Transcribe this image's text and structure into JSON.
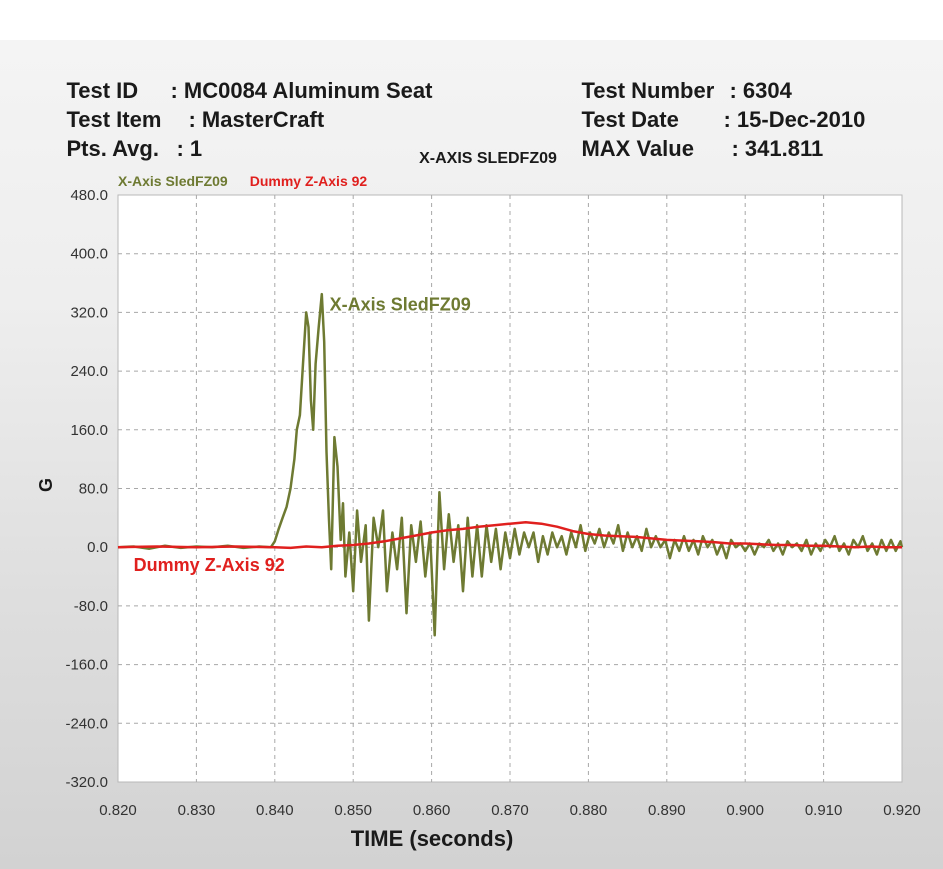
{
  "header": {
    "test_id_label": "Test ID",
    "test_id_value": ": MC0084 Aluminum Seat",
    "test_item_label": "Test Item",
    "test_item_value": ": MasterCraft",
    "pts_avg_label": "Pts. Avg.",
    "pts_avg_value": ": 1",
    "test_number_label": "Test Number",
    "test_number_value": ": 6304",
    "test_date_label": "Test Date",
    "test_date_value": ": 15-Dec-2010",
    "max_value_label": "MAX Value",
    "max_value_value": ": 341.811"
  },
  "chart_data": {
    "type": "line",
    "title": "X-AXIS SLEDFZ09",
    "xlabel": "TIME (seconds)",
    "ylabel": "G",
    "xlim": [
      0.82,
      0.92
    ],
    "ylim": [
      -320,
      480
    ],
    "x_ticks": [
      "0.820",
      "0.830",
      "0.840",
      "0.850",
      "0.860",
      "0.870",
      "0.880",
      "0.890",
      "0.900",
      "0.910",
      "0.920"
    ],
    "y_ticks": [
      "480.0",
      "400.0",
      "320.0",
      "240.0",
      "160.0",
      "80.0",
      "0.0",
      "-80.0",
      "-160.0",
      "-240.0",
      "-320.0"
    ],
    "grid": true,
    "legend_position": "top-left",
    "legend": [
      "X-Axis SledFZ09",
      "Dummy Z-Axis 92"
    ],
    "annotations": [
      {
        "text": "X-Axis SledFZ09",
        "x": 0.847,
        "y": 320,
        "color": "#6e7a32"
      },
      {
        "text": "Dummy Z-Axis 92",
        "x": 0.822,
        "y": -35,
        "color": "#e0201e"
      }
    ],
    "series": [
      {
        "name": "X-Axis SledFZ09",
        "color": "#6e7a32",
        "points": [
          [
            0.82,
            0
          ],
          [
            0.822,
            1
          ],
          [
            0.824,
            -2
          ],
          [
            0.826,
            2
          ],
          [
            0.828,
            -1
          ],
          [
            0.83,
            1
          ],
          [
            0.832,
            0
          ],
          [
            0.834,
            2
          ],
          [
            0.836,
            -1
          ],
          [
            0.838,
            1
          ],
          [
            0.8395,
            0
          ],
          [
            0.84,
            8
          ],
          [
            0.8405,
            25
          ],
          [
            0.841,
            40
          ],
          [
            0.8415,
            55
          ],
          [
            0.842,
            80
          ],
          [
            0.8425,
            120
          ],
          [
            0.8428,
            160
          ],
          [
            0.8432,
            180
          ],
          [
            0.8436,
            250
          ],
          [
            0.844,
            320
          ],
          [
            0.8443,
            300
          ],
          [
            0.8446,
            200
          ],
          [
            0.8449,
            160
          ],
          [
            0.8452,
            250
          ],
          [
            0.8456,
            300
          ],
          [
            0.846,
            345
          ],
          [
            0.8463,
            280
          ],
          [
            0.8466,
            130
          ],
          [
            0.8469,
            40
          ],
          [
            0.8472,
            -30
          ],
          [
            0.8476,
            150
          ],
          [
            0.848,
            110
          ],
          [
            0.8484,
            10
          ],
          [
            0.8487,
            60
          ],
          [
            0.849,
            -40
          ],
          [
            0.8495,
            20
          ],
          [
            0.85,
            -60
          ],
          [
            0.8505,
            50
          ],
          [
            0.851,
            -20
          ],
          [
            0.8516,
            30
          ],
          [
            0.852,
            -100
          ],
          [
            0.8526,
            40
          ],
          [
            0.8532,
            0
          ],
          [
            0.8538,
            50
          ],
          [
            0.8543,
            -60
          ],
          [
            0.855,
            20
          ],
          [
            0.8556,
            -30
          ],
          [
            0.8562,
            40
          ],
          [
            0.8568,
            -90
          ],
          [
            0.8574,
            30
          ],
          [
            0.858,
            -20
          ],
          [
            0.8586,
            35
          ],
          [
            0.8592,
            -40
          ],
          [
            0.8598,
            20
          ],
          [
            0.8604,
            -120
          ],
          [
            0.861,
            75
          ],
          [
            0.8616,
            -30
          ],
          [
            0.8622,
            45
          ],
          [
            0.8628,
            -20
          ],
          [
            0.8634,
            30
          ],
          [
            0.864,
            -60
          ],
          [
            0.8646,
            40
          ],
          [
            0.8652,
            -40
          ],
          [
            0.8658,
            30
          ],
          [
            0.8664,
            -40
          ],
          [
            0.867,
            30
          ],
          [
            0.8676,
            -20
          ],
          [
            0.8682,
            25
          ],
          [
            0.8688,
            -30
          ],
          [
            0.8694,
            20
          ],
          [
            0.87,
            -15
          ],
          [
            0.8706,
            25
          ],
          [
            0.8712,
            -10
          ],
          [
            0.8718,
            20
          ],
          [
            0.8724,
            0
          ],
          [
            0.873,
            20
          ],
          [
            0.8736,
            -20
          ],
          [
            0.8742,
            15
          ],
          [
            0.8748,
            -10
          ],
          [
            0.8754,
            20
          ],
          [
            0.876,
            0
          ],
          [
            0.8766,
            15
          ],
          [
            0.8772,
            -10
          ],
          [
            0.8778,
            20
          ],
          [
            0.8784,
            0
          ],
          [
            0.879,
            30
          ],
          [
            0.8796,
            -5
          ],
          [
            0.8802,
            20
          ],
          [
            0.8808,
            5
          ],
          [
            0.8814,
            25
          ],
          [
            0.882,
            0
          ],
          [
            0.8826,
            20
          ],
          [
            0.8832,
            5
          ],
          [
            0.8838,
            30
          ],
          [
            0.8844,
            -5
          ],
          [
            0.885,
            20
          ],
          [
            0.8856,
            0
          ],
          [
            0.8862,
            15
          ],
          [
            0.8868,
            -5
          ],
          [
            0.8874,
            25
          ],
          [
            0.888,
            0
          ],
          [
            0.8886,
            15
          ],
          [
            0.8892,
            0
          ],
          [
            0.8898,
            10
          ],
          [
            0.8904,
            -15
          ],
          [
            0.891,
            10
          ],
          [
            0.8916,
            -5
          ],
          [
            0.8922,
            15
          ],
          [
            0.8928,
            -5
          ],
          [
            0.8934,
            10
          ],
          [
            0.894,
            -10
          ],
          [
            0.8946,
            15
          ],
          [
            0.8952,
            0
          ],
          [
            0.8958,
            10
          ],
          [
            0.8964,
            -10
          ],
          [
            0.897,
            5
          ],
          [
            0.8976,
            -15
          ],
          [
            0.8982,
            10
          ],
          [
            0.8988,
            0
          ],
          [
            0.8994,
            5
          ],
          [
            0.9,
            -5
          ],
          [
            0.9006,
            5
          ],
          [
            0.9012,
            -10
          ],
          [
            0.9018,
            5
          ],
          [
            0.9024,
            0
          ],
          [
            0.903,
            10
          ],
          [
            0.9036,
            -5
          ],
          [
            0.9042,
            5
          ],
          [
            0.9048,
            -10
          ],
          [
            0.9054,
            8
          ],
          [
            0.906,
            0
          ],
          [
            0.9066,
            5
          ],
          [
            0.9072,
            -5
          ],
          [
            0.9078,
            10
          ],
          [
            0.9084,
            -10
          ],
          [
            0.909,
            5
          ],
          [
            0.9096,
            -5
          ],
          [
            0.9102,
            10
          ],
          [
            0.9108,
            0
          ],
          [
            0.9114,
            15
          ],
          [
            0.912,
            -5
          ],
          [
            0.9126,
            5
          ],
          [
            0.9132,
            -10
          ],
          [
            0.9138,
            10
          ],
          [
            0.9144,
            0
          ],
          [
            0.915,
            15
          ],
          [
            0.9156,
            -5
          ],
          [
            0.9162,
            5
          ],
          [
            0.9168,
            -10
          ],
          [
            0.9174,
            10
          ],
          [
            0.918,
            -5
          ],
          [
            0.9186,
            10
          ],
          [
            0.9192,
            -5
          ],
          [
            0.9198,
            8
          ],
          [
            0.92,
            0
          ]
        ]
      },
      {
        "name": "Dummy Z-Axis 92",
        "color": "#e0201e",
        "points": [
          [
            0.82,
            0
          ],
          [
            0.825,
            1
          ],
          [
            0.83,
            0
          ],
          [
            0.835,
            1
          ],
          [
            0.84,
            0
          ],
          [
            0.842,
            -1
          ],
          [
            0.844,
            1
          ],
          [
            0.846,
            0
          ],
          [
            0.848,
            2
          ],
          [
            0.85,
            3
          ],
          [
            0.852,
            5
          ],
          [
            0.854,
            8
          ],
          [
            0.856,
            12
          ],
          [
            0.858,
            16
          ],
          [
            0.86,
            20
          ],
          [
            0.862,
            23
          ],
          [
            0.864,
            25
          ],
          [
            0.866,
            28
          ],
          [
            0.868,
            30
          ],
          [
            0.87,
            32
          ],
          [
            0.872,
            34
          ],
          [
            0.874,
            32
          ],
          [
            0.876,
            28
          ],
          [
            0.878,
            22
          ],
          [
            0.88,
            18
          ],
          [
            0.882,
            16
          ],
          [
            0.884,
            15
          ],
          [
            0.886,
            14
          ],
          [
            0.888,
            12
          ],
          [
            0.89,
            10
          ],
          [
            0.892,
            9
          ],
          [
            0.894,
            8
          ],
          [
            0.896,
            7
          ],
          [
            0.898,
            5
          ],
          [
            0.9,
            5
          ],
          [
            0.902,
            4
          ],
          [
            0.904,
            3
          ],
          [
            0.906,
            3
          ],
          [
            0.908,
            2
          ],
          [
            0.91,
            2
          ],
          [
            0.912,
            1
          ],
          [
            0.914,
            0
          ],
          [
            0.916,
            1
          ],
          [
            0.918,
            0
          ],
          [
            0.92,
            0
          ]
        ]
      }
    ]
  }
}
